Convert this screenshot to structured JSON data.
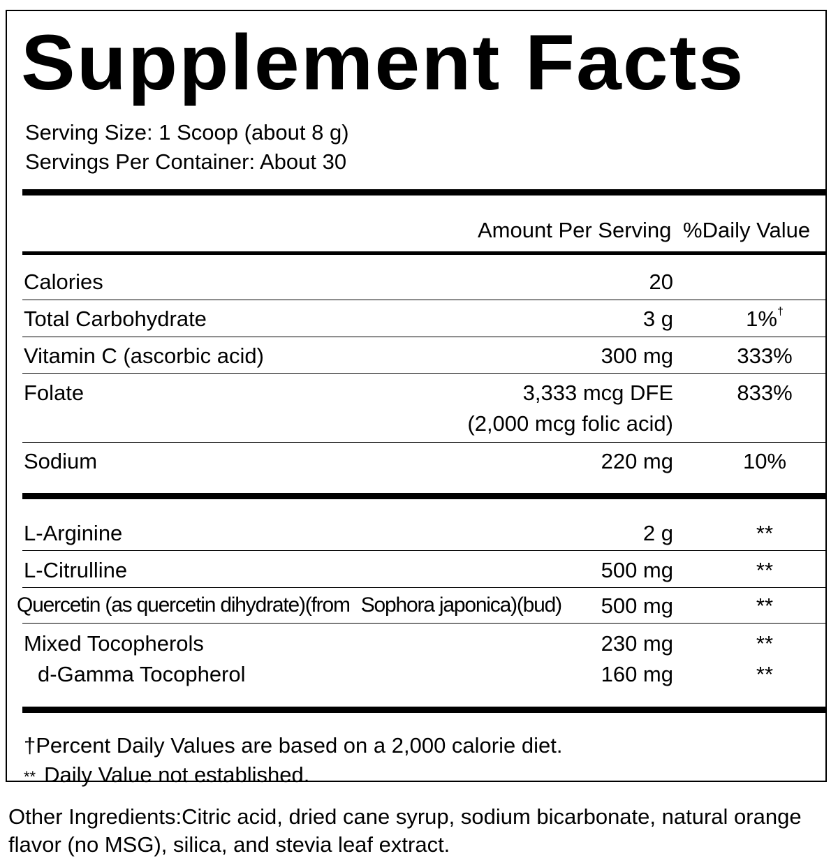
{
  "title": "Supplement Facts",
  "serving_size": "Serving Size: 1 Scoop (about 8 g)",
  "servings_per_container": "Servings Per Container: About 30",
  "header": {
    "amount": "Amount Per Serving",
    "dv": "%Daily Value"
  },
  "nutrients": [
    {
      "name": "Calories",
      "amount": "20",
      "dv": ""
    },
    {
      "name": "Total Carbohydrate",
      "amount": "3 g",
      "dv": "1%",
      "dv_mark": "†"
    },
    {
      "name": "Vitamin C (ascorbic acid)",
      "amount": "300 mg",
      "dv": "333%"
    },
    {
      "name": "Folate",
      "amount": "3,333 mcg DFE",
      "amount_line2": "(2,000 mcg folic acid)",
      "dv": "833%"
    },
    {
      "name": "Sodium",
      "amount": "220 mg",
      "dv": "10%"
    }
  ],
  "ingredients": [
    {
      "name": "L-Arginine",
      "amount": "2 g",
      "dv": "**"
    },
    {
      "name": "L-Citrulline",
      "amount": "500 mg",
      "dv": "**"
    },
    {
      "name": "Quercetin (as quercetin dihydrate)(from",
      "name_part2": "Sophora japonica",
      "name_part3": ")(bud)",
      "amount": "500 mg",
      "dv": "**"
    },
    {
      "name": "Mixed Tocopherols",
      "amount": "230 mg",
      "dv": "**"
    },
    {
      "name": "d-Gamma Tocopherol",
      "amount": "160 mg",
      "dv": "**"
    }
  ],
  "footnotes": {
    "dagger": "†Percent Daily Values are based on a 2,000 calorie diet.",
    "double_star_mark": "**",
    "double_star": "Daily Value not established."
  },
  "other_ingredients": "Other Ingredients:Citric acid, dried cane syrup, sodium bicarbonate, natural orange flavor (no MSG), silica, and stevia leaf extract."
}
